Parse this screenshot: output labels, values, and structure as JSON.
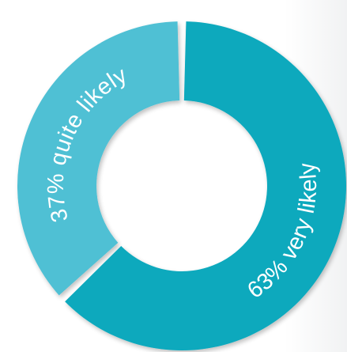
{
  "chart_data": {
    "type": "pie",
    "style": "donut",
    "slices": [
      {
        "label": "63% very likely",
        "value": 63,
        "color": "#08a9bd"
      },
      {
        "label": "37% quite likely",
        "value": 37,
        "color": "#50c0d4"
      }
    ],
    "background": "#ffffff"
  }
}
